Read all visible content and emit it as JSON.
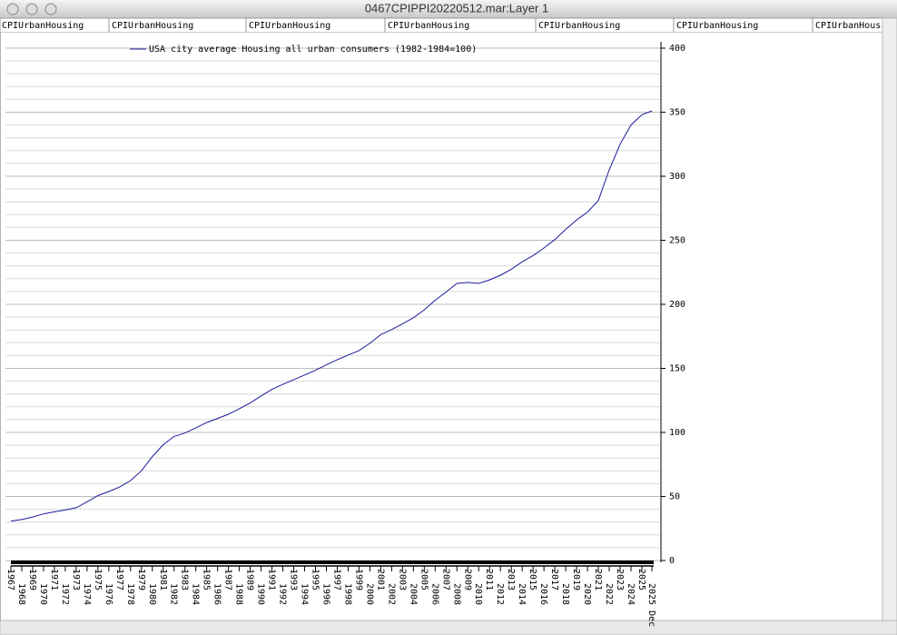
{
  "window": {
    "title": "0467CPIPPI20220512.mar:Layer 1",
    "tabs": [
      "CPIUrbanHousing",
      "CPIUrbanHousing",
      "CPIUrbanHousing",
      "CPIUrbanHousing",
      "CPIUrbanHousing",
      "CPIUrbanHousing",
      "CPIUrbanHousing"
    ]
  },
  "chart_data": {
    "type": "line",
    "x": [
      1967,
      1968,
      1969,
      1970,
      1971,
      1972,
      1973,
      1974,
      1975,
      1976,
      1977,
      1978,
      1979,
      1980,
      1981,
      1982,
      1983,
      1984,
      1985,
      1986,
      1987,
      1988,
      1989,
      1990,
      1991,
      1992,
      1993,
      1994,
      1995,
      1996,
      1997,
      1998,
      1999,
      2000,
      2001,
      2002,
      2003,
      2004,
      2005,
      2006,
      2007,
      2008,
      2009,
      2010,
      2011,
      2012,
      2013,
      2014,
      2015,
      2016,
      2017,
      2018,
      2019,
      2020,
      2021,
      2022,
      2023,
      2024,
      2025,
      2025.92
    ],
    "series": [
      {
        "name": "USA city average Housing all urban consumers (1982-1984=100)",
        "color": "#1a1a9c",
        "values": [
          30.8,
          32,
          34,
          36.4,
          38,
          39.4,
          41.2,
          45.8,
          50.7,
          53.8,
          57.4,
          62.4,
          70.1,
          81.1,
          90.4,
          96.9,
          99.5,
          103.6,
          107.7,
          110.9,
          114.2,
          118.5,
          123,
          128.5,
          133.6,
          137.5,
          141.2,
          144.8,
          148.5,
          152.8,
          156.8,
          160.4,
          163.9,
          169.6,
          176.4,
          180.3,
          184.8,
          189.5,
          195.7,
          203.2,
          209.6,
          216.3,
          217.1,
          216.3,
          219.1,
          222.7,
          227.4,
          233.2,
          238.1,
          244,
          250.6,
          258.5,
          265.9,
          272,
          281,
          305,
          325,
          340,
          348,
          351
        ]
      }
    ],
    "xlim": [
      1967,
      2025.92
    ],
    "xticks": [
      1967,
      1968,
      1969,
      1970,
      1971,
      1972,
      1973,
      1974,
      1975,
      1976,
      1977,
      1978,
      1979,
      1980,
      1981,
      1982,
      1983,
      1984,
      1985,
      1986,
      1987,
      1988,
      1989,
      1990,
      1991,
      1992,
      1993,
      1994,
      1995,
      1996,
      1997,
      1998,
      1999,
      2000,
      2001,
      2002,
      2003,
      2004,
      2005,
      2006,
      2007,
      2008,
      2009,
      2010,
      2011,
      2012,
      2013,
      2014,
      2015,
      2016,
      2017,
      2018,
      2019,
      2020,
      2021,
      2022,
      2023,
      2024,
      2025,
      {
        "value": 2025.92,
        "label": "2025 Dec"
      }
    ],
    "ylim": [
      0,
      400
    ],
    "yticks": [
      0,
      50,
      100,
      150,
      200,
      250,
      300,
      350,
      400
    ],
    "minor_yticks": [
      10,
      20,
      30,
      40,
      60,
      70,
      80,
      90,
      110,
      120,
      130,
      140,
      160,
      170,
      180,
      190,
      210,
      220,
      230,
      240,
      260,
      270,
      280,
      290,
      310,
      320,
      330,
      340,
      360,
      370,
      380,
      390
    ],
    "grid": true
  }
}
